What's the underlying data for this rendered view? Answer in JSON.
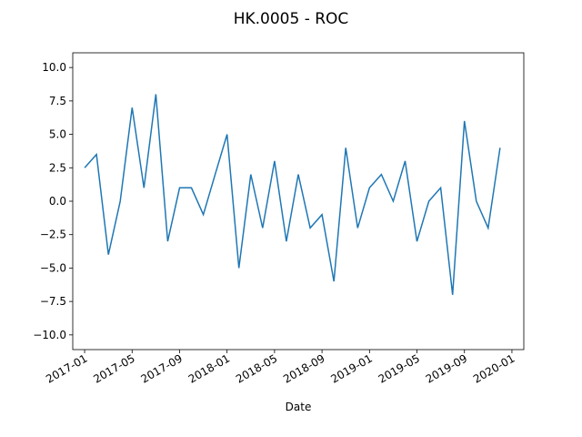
{
  "chart_data": {
    "type": "line",
    "title": "HK.0005 - ROC",
    "x_label": "Date",
    "x": [
      "2017-01",
      "2017-02",
      "2017-03",
      "2017-04",
      "2017-05",
      "2017-06",
      "2017-07",
      "2017-08",
      "2017-09",
      "2017-10",
      "2017-11",
      "2017-12",
      "2018-01",
      "2018-02",
      "2018-03",
      "2018-04",
      "2018-05",
      "2018-06",
      "2018-07",
      "2018-08",
      "2018-09",
      "2018-10",
      "2018-11",
      "2018-12",
      "2019-01",
      "2019-02",
      "2019-03",
      "2019-04",
      "2019-05",
      "2019-06",
      "2019-07",
      "2019-08",
      "2019-09",
      "2019-10",
      "2019-11",
      "2019-12"
    ],
    "values": [
      2.5,
      3.5,
      -4,
      0,
      7,
      1,
      8,
      -3,
      1,
      1,
      -1,
      2,
      5,
      -5,
      2,
      -2,
      3,
      -3,
      2,
      -2,
      -1,
      -6,
      4,
      -2,
      1,
      2,
      0,
      3,
      -3,
      0,
      1,
      -7,
      6,
      0,
      -2,
      4
    ],
    "color": "#1f77b4",
    "xlim": [
      "2016-12",
      "2020-02"
    ],
    "xticks": [
      "2017-01",
      "2017-05",
      "2017-09",
      "2018-01",
      "2018-05",
      "2018-09",
      "2019-01",
      "2019-05",
      "2019-09",
      "2020-01"
    ],
    "ylim": [
      -11.1,
      11.1
    ],
    "yticks": [
      {
        "value": -10,
        "label": "−10.0"
      },
      {
        "value": -7.5,
        "label": "−7.5"
      },
      {
        "value": -5,
        "label": "−5.0"
      },
      {
        "value": -2.5,
        "label": "−2.5"
      },
      {
        "value": 0,
        "label": "0.0"
      },
      {
        "value": 2.5,
        "label": "2.5"
      },
      {
        "value": 5,
        "label": "5.0"
      },
      {
        "value": 7.5,
        "label": "7.5"
      },
      {
        "value": 10,
        "label": "10.0"
      }
    ]
  }
}
